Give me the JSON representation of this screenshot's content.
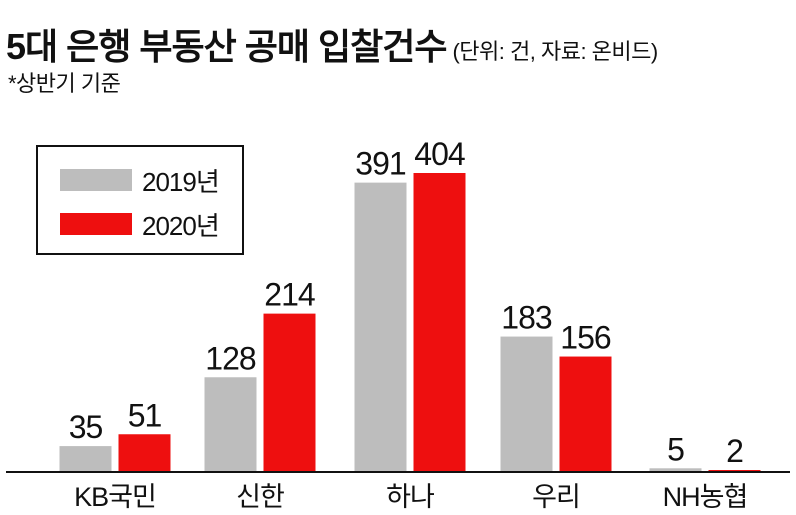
{
  "title": "5대 은행 부동산 공매 입찰건수",
  "subtitle": "(단위: 건, 자료: 온비드)",
  "note": "*상반기 기준",
  "colors": {
    "s2019": "#bdbdbd",
    "s2020": "#ee0f0f",
    "axis": "#111111",
    "text": "#111111"
  },
  "chart_data": {
    "type": "bar",
    "categories": [
      "KB국민",
      "신한",
      "하나",
      "우리",
      "NH농협"
    ],
    "series": [
      {
        "name": "2019년",
        "values": [
          35,
          128,
          391,
          183,
          5
        ]
      },
      {
        "name": "2020년",
        "values": [
          51,
          214,
          404,
          156,
          2
        ]
      }
    ],
    "ylim": [
      0,
      404
    ],
    "grid": false,
    "legend": "top-left",
    "title": "5대 은행 부동산 공매 입찰건수",
    "xlabel": "",
    "ylabel": ""
  }
}
